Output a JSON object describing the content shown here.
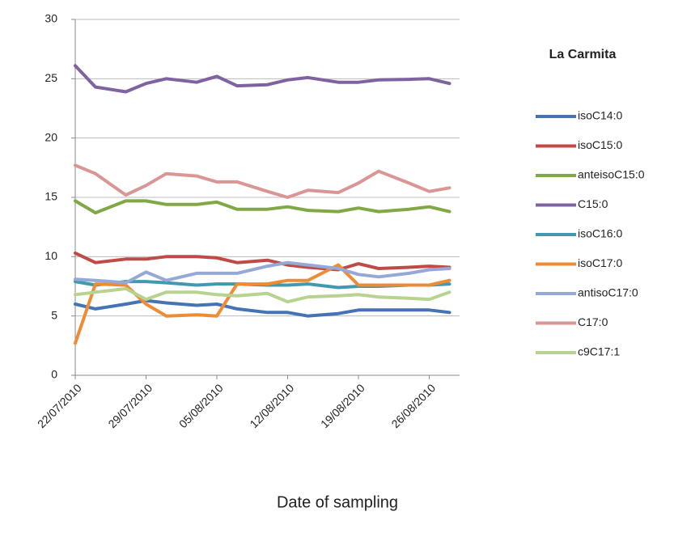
{
  "chart_data": {
    "type": "line",
    "legend_title": "La Carmita",
    "x_label": "Date of sampling",
    "x": [
      "22/07/2010",
      "24/07/2010",
      "27/07/2010",
      "29/07/2010",
      "31/07/2010",
      "03/08/2010",
      "05/08/2010",
      "07/08/2010",
      "10/08/2010",
      "12/08/2010",
      "14/08/2010",
      "17/08/2010",
      "19/08/2010",
      "21/08/2010",
      "24/08/2010",
      "26/08/2010",
      "28/08/2010"
    ],
    "xlim": [
      "22/07/2010",
      "29/08/2010"
    ],
    "xticks": [
      "22/07/2010",
      "29/07/2010",
      "05/08/2010",
      "12/08/2010",
      "19/08/2010",
      "26/08/2010"
    ],
    "ylim": [
      0,
      30
    ],
    "yticks": [
      0,
      5,
      10,
      15,
      20,
      25,
      30
    ],
    "grid": true,
    "legend": "right",
    "series": [
      {
        "name": "isoC14:0",
        "color": "#4573b6",
        "values": [
          6.0,
          5.6,
          6.0,
          6.3,
          6.1,
          5.9,
          6.0,
          5.6,
          5.3,
          5.3,
          5.0,
          5.2,
          5.5,
          5.5,
          5.5,
          5.5,
          5.3
        ]
      },
      {
        "name": "isoC15:0",
        "color": "#be4b48",
        "values": [
          10.3,
          9.5,
          9.8,
          9.8,
          10.0,
          10.0,
          9.9,
          9.5,
          9.7,
          9.3,
          9.1,
          8.9,
          9.4,
          9.0,
          9.1,
          9.2,
          9.1
        ]
      },
      {
        "name": "anteisoC15:0",
        "color": "#80a945",
        "values": [
          14.7,
          13.7,
          14.7,
          14.7,
          14.4,
          14.4,
          14.6,
          14.0,
          14.0,
          14.2,
          13.9,
          13.8,
          14.1,
          13.8,
          14.0,
          14.2,
          13.8
        ]
      },
      {
        "name": "C15:0",
        "color": "#7f63a1",
        "values": [
          26.1,
          24.3,
          23.9,
          24.6,
          25.0,
          24.7,
          25.2,
          24.4,
          24.5,
          24.9,
          25.1,
          24.7,
          24.7,
          24.9,
          24.95,
          25.0,
          24.6
        ]
      },
      {
        "name": "isoC16:0",
        "color": "#4198af",
        "values": [
          7.9,
          7.6,
          7.9,
          7.9,
          7.8,
          7.6,
          7.7,
          7.7,
          7.6,
          7.6,
          7.7,
          7.4,
          7.5,
          7.5,
          7.6,
          7.6,
          7.7
        ]
      },
      {
        "name": "isoC17:0",
        "color": "#ef8b33",
        "values": [
          2.7,
          7.7,
          7.6,
          6.0,
          5.0,
          5.1,
          5.0,
          7.7,
          7.7,
          8.0,
          8.0,
          9.3,
          7.6,
          7.6,
          7.6,
          7.6,
          8.0
        ]
      },
      {
        "name": "antisoC17:0",
        "color": "#94a9d6",
        "values": [
          8.1,
          8.0,
          7.8,
          8.7,
          8.0,
          8.6,
          8.6,
          8.6,
          9.2,
          9.5,
          9.3,
          9.0,
          8.5,
          8.3,
          8.6,
          8.9,
          9.0
        ]
      },
      {
        "name": "C17:0",
        "color": "#d99694",
        "values": [
          17.7,
          17.0,
          15.2,
          16.0,
          17.0,
          16.8,
          16.3,
          16.3,
          15.5,
          15.0,
          15.6,
          15.4,
          16.2,
          17.2,
          16.2,
          15.5,
          15.8
        ]
      },
      {
        "name": "c9C17:1",
        "color": "#b8d28f",
        "values": [
          6.8,
          7.0,
          7.3,
          6.4,
          7.0,
          7.0,
          6.8,
          6.7,
          6.9,
          6.2,
          6.6,
          6.7,
          6.8,
          6.6,
          6.5,
          6.4,
          7.0
        ]
      }
    ]
  }
}
